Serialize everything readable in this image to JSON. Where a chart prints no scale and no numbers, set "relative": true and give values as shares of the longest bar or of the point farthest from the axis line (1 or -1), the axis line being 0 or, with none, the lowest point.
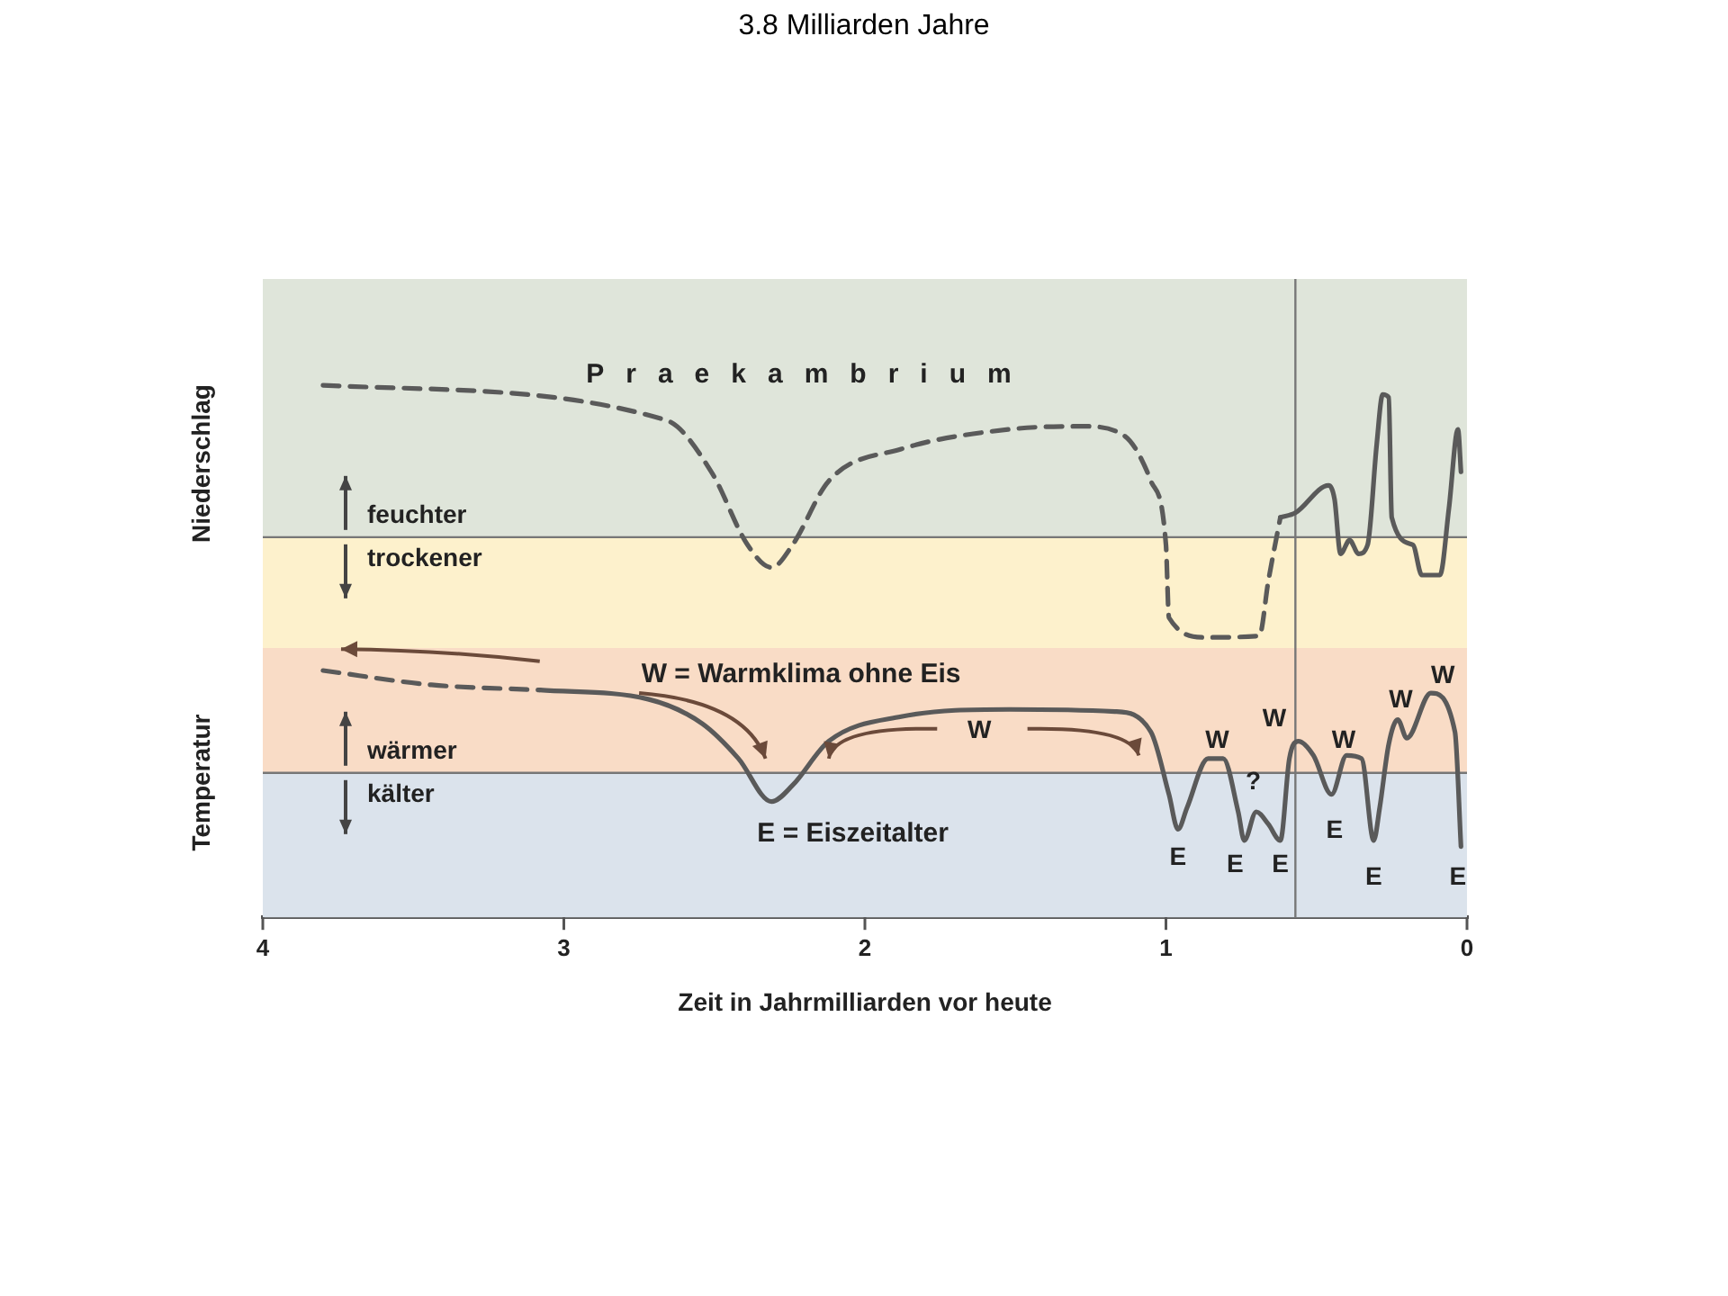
{
  "chart_data": [
    {
      "type": "line",
      "title": "3.8 Milliarden Jahre",
      "ylabel": "Niederschlag",
      "relative": true,
      "xlim": [
        4,
        0
      ],
      "tick_labels": false,
      "grid": false,
      "legend": false,
      "marker": "none",
      "series": [
        {
          "color": "#5a5a5a",
          "line_style": "dashed",
          "x": [
            3.8,
            2.66,
            2.51,
            2.39,
            2.31,
            2.24,
            2.12,
            1.88,
            1.52,
            1.28,
            1.14,
            1.05,
            1.0,
            0.99,
            0.87,
            0.69,
            0.66,
            0.62
          ],
          "values": [
            1.0,
            0.77,
            0.43,
            -0.05,
            -0.2,
            -0.05,
            0.37,
            0.58,
            0.71,
            0.73,
            0.67,
            0.37,
            -0.05,
            -0.53,
            -0.66,
            -0.65,
            -0.29,
            0.13
          ]
        },
        {
          "color": "#5a5a5a",
          "line_style": "solid",
          "x": [
            0.62,
            0.57,
            0.46,
            0.44,
            0.42,
            0.39,
            0.36,
            0.33,
            0.3,
            0.28,
            0.26,
            0.25,
            0.18,
            0.15,
            0.09,
            0.06,
            0.03,
            0.02
          ],
          "values": [
            0.13,
            0.16,
            0.34,
            0.25,
            -0.11,
            -0.02,
            -0.11,
            -0.05,
            0.61,
            0.94,
            0.92,
            0.13,
            -0.05,
            -0.25,
            -0.25,
            0.19,
            0.71,
            0.43
          ]
        }
      ],
      "bands": [
        {
          "axis": "y",
          "from": 0,
          "to": 1.7,
          "label": "feuchter",
          "color": "#dfe5da"
        },
        {
          "axis": "y",
          "from": -0.73,
          "to": 0,
          "label": "trockener",
          "color": "#fdf1cc"
        }
      ],
      "ref_lines": [
        {
          "axis": "x",
          "value": 0.57
        }
      ],
      "annotations": [
        "Praekambrium"
      ]
    },
    {
      "type": "line",
      "ylabel": "Temperatur",
      "xlabel": "Zeit in Jahrmilliarden vor heute",
      "relative": true,
      "xlim": [
        4,
        0
      ],
      "tick_labels": "x",
      "grid": false,
      "legend": false,
      "marker": "none",
      "xticks": [
        4,
        3,
        2,
        1,
        0
      ],
      "series": [
        {
          "color": "#5a5a5a",
          "line_style": "dashed",
          "x": [
            3.8,
            3.44,
            3.08
          ],
          "values": [
            1.0,
            0.86,
            0.81
          ]
        },
        {
          "color": "#5a5a5a",
          "line_style": "solid",
          "x": [
            3.08,
            2.72,
            2.54,
            2.42,
            2.31,
            2.24,
            2.12,
            1.88,
            1.52,
            1.17,
            1.05,
            0.99,
            0.96,
            0.93,
            0.86,
            0.81,
            0.76,
            0.74,
            0.7,
            0.66,
            0.62,
            0.59,
            0.56,
            0.51,
            0.45,
            0.4,
            0.35,
            0.31,
            0.29,
            0.26,
            0.23,
            0.2,
            0.12,
            0.04,
            0.02
          ],
          "values": [
            0.81,
            0.72,
            0.48,
            0.14,
            -0.28,
            -0.12,
            0.31,
            0.55,
            0.62,
            0.6,
            0.4,
            -0.21,
            -0.55,
            -0.34,
            0.14,
            0.14,
            -0.38,
            -0.66,
            -0.38,
            -0.5,
            -0.66,
            0.14,
            0.31,
            0.17,
            -0.21,
            0.17,
            0.14,
            -0.66,
            -0.34,
            0.28,
            0.52,
            0.34,
            0.78,
            0.4,
            -0.72
          ]
        }
      ],
      "bands": [
        {
          "axis": "y",
          "from": 0,
          "to": 1.22,
          "label": "wärmer",
          "color": "#f9dcc6"
        },
        {
          "axis": "y",
          "from": -1.41,
          "to": 0,
          "label": "kälter",
          "color": "#dbe3ec"
        }
      ],
      "ref_lines": [
        {
          "axis": "x",
          "value": 0.57
        }
      ],
      "annotations": [
        "W = Warmklima ohne Eis",
        "E = Eiszeitalter",
        "W",
        "W",
        "E",
        "E",
        "?",
        "E",
        "W",
        "W",
        "E",
        "E",
        "W",
        "W",
        "E"
      ]
    }
  ]
}
